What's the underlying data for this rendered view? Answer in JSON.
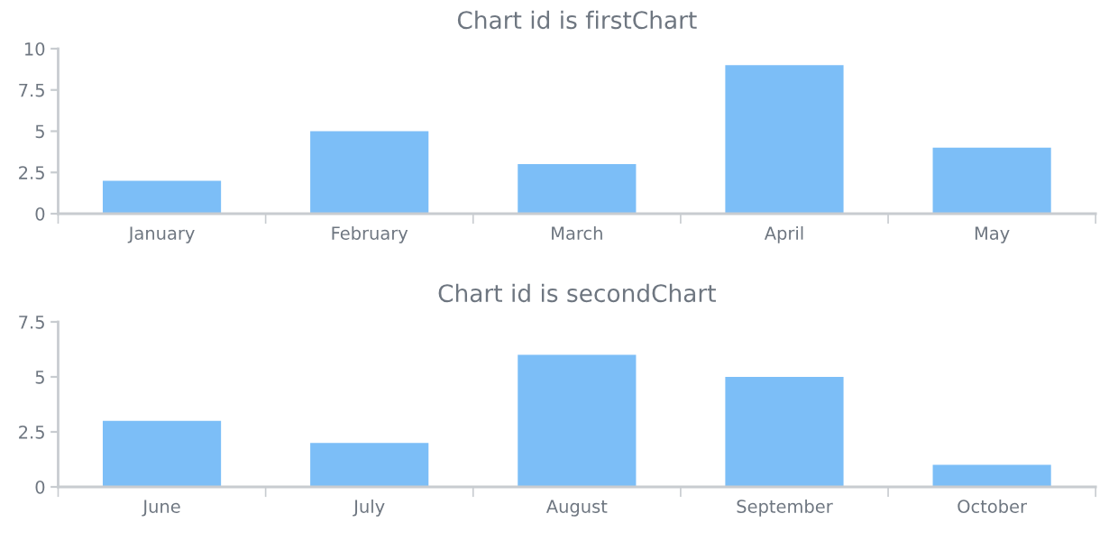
{
  "chart_data": [
    {
      "type": "bar",
      "title": "Chart id is firstChart",
      "categories": [
        "January",
        "February",
        "March",
        "April",
        "May"
      ],
      "values": [
        2,
        5,
        3,
        9,
        4
      ],
      "color": "#7cbef7",
      "ylim": [
        0,
        10
      ],
      "yticks": [
        0,
        2.5,
        5,
        7.5,
        10
      ],
      "grid": false,
      "legend": false
    },
    {
      "type": "bar",
      "title": "Chart id is secondChart",
      "categories": [
        "June",
        "July",
        "August",
        "September",
        "October"
      ],
      "values": [
        3,
        2,
        6,
        5,
        1
      ],
      "color": "#7cbef7",
      "ylim": [
        0,
        7.5
      ],
      "yticks": [
        0,
        2.5,
        5,
        7.5
      ],
      "grid": false,
      "legend": false
    }
  ]
}
